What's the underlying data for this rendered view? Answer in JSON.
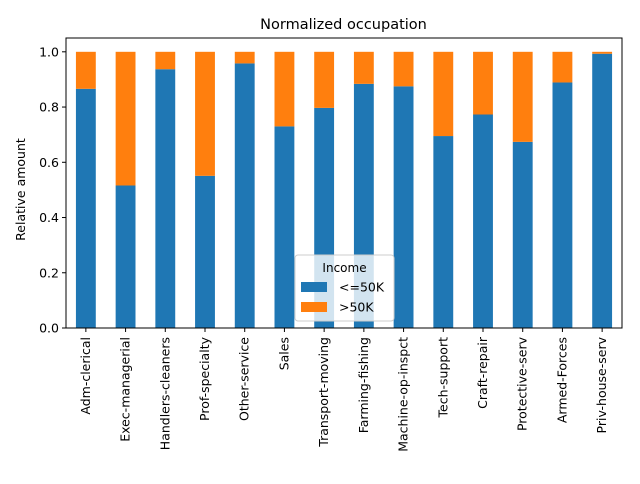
{
  "chart_data": {
    "type": "bar",
    "stacked": true,
    "title": "Normalized occupation",
    "xlabel": "",
    "ylabel": "Relative amount",
    "ylim": [
      0,
      1.05
    ],
    "yticks": [
      "0.0",
      "0.2",
      "0.4",
      "0.6",
      "0.8",
      "1.0"
    ],
    "categories": [
      "Adm-clerical",
      "Exec-managerial",
      "Handlers-cleaners",
      "Prof-specialty",
      "Other-service",
      "Sales",
      "Transport-moving",
      "Farming-fishing",
      "Machine-op-inspct",
      "Tech-support",
      "Craft-repair",
      "Protective-serv",
      "Armed-Forces",
      "Priv-house-serv"
    ],
    "series": [
      {
        "name": "<=50K",
        "color": "#1f77b4",
        "values": [
          0.866,
          0.516,
          0.937,
          0.551,
          0.958,
          0.73,
          0.797,
          0.884,
          0.875,
          0.695,
          0.773,
          0.674,
          0.889,
          0.993
        ]
      },
      {
        "name": ">50K",
        "color": "#ff7f0e",
        "values": [
          0.134,
          0.484,
          0.063,
          0.449,
          0.042,
          0.27,
          0.203,
          0.116,
          0.125,
          0.305,
          0.227,
          0.326,
          0.111,
          0.007
        ]
      }
    ],
    "legend": {
      "title": "Income",
      "placement": "lower-center"
    },
    "grid": false
  }
}
